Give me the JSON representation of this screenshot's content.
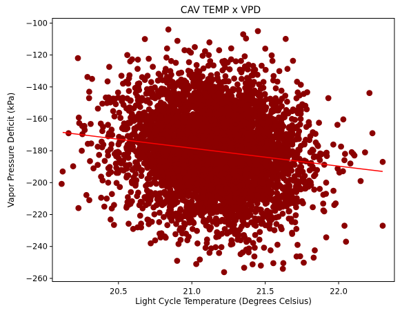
{
  "chart_data": {
    "type": "scatter",
    "title": "CAV TEMP x VPD",
    "xlabel": "Light Cycle Temperature (Degrees Celsius)",
    "ylabel": "Vapor Pressure Deficit (kPa)",
    "xlim": [
      20.05,
      22.38
    ],
    "ylim": [
      -262,
      -97
    ],
    "xticks": [
      20.5,
      21.0,
      21.5,
      22.0
    ],
    "xtick_labels": [
      "20.5",
      "21.0",
      "21.5",
      "22.0"
    ],
    "yticks": [
      -260,
      -240,
      -220,
      -200,
      -180,
      -160,
      -140,
      -120,
      -100
    ],
    "ytick_labels": [
      "−260",
      "−240",
      "−220",
      "−200",
      "−180",
      "−160",
      "−140",
      "−120",
      "−100"
    ],
    "grid": false,
    "colors": {
      "points": "#8b0000",
      "trend": "#ff0000",
      "axes": "#000000"
    },
    "trend_line": {
      "x": [
        20.12,
        22.3
      ],
      "y": [
        -168.5,
        -193
      ]
    },
    "points_sample": [
      {
        "x": 20.12,
        "y": -193
      },
      {
        "x": 20.16,
        "y": -169
      },
      {
        "x": 20.25,
        "y": -180
      },
      {
        "x": 20.27,
        "y": -167
      },
      {
        "x": 20.3,
        "y": -147
      },
      {
        "x": 20.32,
        "y": -135
      },
      {
        "x": 20.33,
        "y": -191
      },
      {
        "x": 20.38,
        "y": -163
      },
      {
        "x": 20.42,
        "y": -210
      },
      {
        "x": 20.43,
        "y": -200
      },
      {
        "x": 20.47,
        "y": -214
      },
      {
        "x": 20.52,
        "y": -133
      },
      {
        "x": 20.56,
        "y": -120
      },
      {
        "x": 20.58,
        "y": -124
      },
      {
        "x": 20.6,
        "y": -229
      },
      {
        "x": 20.63,
        "y": -228
      },
      {
        "x": 20.68,
        "y": -110
      },
      {
        "x": 20.72,
        "y": -238
      },
      {
        "x": 20.78,
        "y": -232
      },
      {
        "x": 20.84,
        "y": -104
      },
      {
        "x": 20.9,
        "y": -249
      },
      {
        "x": 20.95,
        "y": -117
      },
      {
        "x": 21.02,
        "y": -115
      },
      {
        "x": 21.03,
        "y": -251
      },
      {
        "x": 21.12,
        "y": -244
      },
      {
        "x": 21.18,
        "y": -136
      },
      {
        "x": 21.3,
        "y": -124
      },
      {
        "x": 21.35,
        "y": -107
      },
      {
        "x": 21.37,
        "y": -242
      },
      {
        "x": 21.45,
        "y": -105
      },
      {
        "x": 21.47,
        "y": -252
      },
      {
        "x": 21.5,
        "y": -116
      },
      {
        "x": 21.62,
        "y": -254
      },
      {
        "x": 21.72,
        "y": -239
      },
      {
        "x": 21.83,
        "y": -247
      },
      {
        "x": 21.93,
        "y": -147
      },
      {
        "x": 21.98,
        "y": -213
      },
      {
        "x": 22.04,
        "y": -227
      },
      {
        "x": 22.05,
        "y": -237
      },
      {
        "x": 22.08,
        "y": -188
      },
      {
        "x": 22.1,
        "y": -182
      },
      {
        "x": 22.15,
        "y": -199
      },
      {
        "x": 22.18,
        "y": -181
      },
      {
        "x": 22.23,
        "y": -169
      },
      {
        "x": 22.3,
        "y": -187
      },
      {
        "x": 22.3,
        "y": -227
      }
    ],
    "point_cloud": {
      "approx_count": 5000,
      "x_mean": 21.16,
      "x_std": 0.29,
      "y_mean": -180,
      "y_std": 22,
      "trend_slope": -11.2
    }
  }
}
